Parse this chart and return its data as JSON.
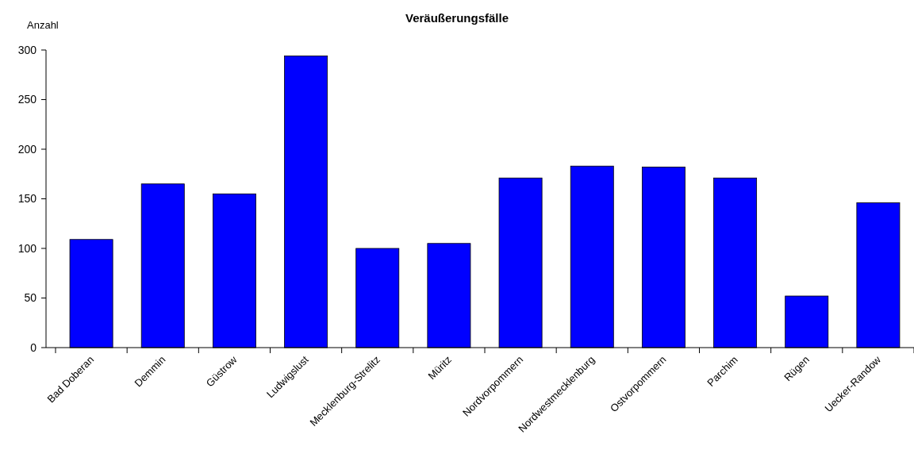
{
  "chart_data": {
    "type": "bar",
    "title": "Veräußerungsfälle",
    "ylabel": "Anzahl",
    "categories": [
      "Bad Doberan",
      "Demmin",
      "Güstrow",
      "Ludwigslust",
      "Mecklenburg-Strelitz",
      "Müritz",
      "Nordvorpommern",
      "Nordwestmecklenburg",
      "Ostvorpommern",
      "Parchim",
      "Rügen",
      "Uecker-Randow"
    ],
    "values": [
      109,
      165,
      155,
      294,
      100,
      105,
      171,
      183,
      182,
      171,
      52,
      146
    ],
    "color": "#0000ff",
    "ylim": [
      0,
      300
    ],
    "yticks": [
      0,
      50,
      100,
      150,
      200,
      250,
      300
    ],
    "grid": false
  }
}
